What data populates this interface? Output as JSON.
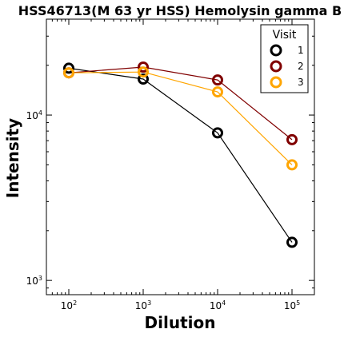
{
  "chart_data": {
    "type": "line",
    "title": "HSS46713(M 63 yr HSS) Hemolysin gamma B",
    "xlabel": "Dilution",
    "ylabel": "Intensity",
    "x_scale": "log",
    "y_scale": "log",
    "xlim": [
      50,
      200000
    ],
    "ylim": [
      820,
      38000
    ],
    "x_ticks": [
      {
        "value": 100,
        "base": "10",
        "exp": "2"
      },
      {
        "value": 1000,
        "base": "10",
        "exp": "3"
      },
      {
        "value": 10000,
        "base": "10",
        "exp": "4"
      },
      {
        "value": 100000,
        "base": "10",
        "exp": "5"
      }
    ],
    "y_ticks": [
      {
        "value": 1000,
        "base": "10",
        "exp": "3"
      },
      {
        "value": 10000,
        "base": "10",
        "exp": "4"
      }
    ],
    "x": [
      100,
      1000,
      10000,
      100000
    ],
    "series": [
      {
        "name": "1",
        "color": "#000000",
        "values": [
          19200,
          16500,
          7800,
          1700
        ]
      },
      {
        "name": "2",
        "color": "#800000",
        "values": [
          18000,
          19500,
          16300,
          7100
        ]
      },
      {
        "name": "3",
        "color": "#ffa500",
        "values": [
          18000,
          18200,
          13800,
          5000
        ]
      }
    ],
    "legend": {
      "title": "Visit",
      "placement": "top-right"
    },
    "grid": false
  }
}
